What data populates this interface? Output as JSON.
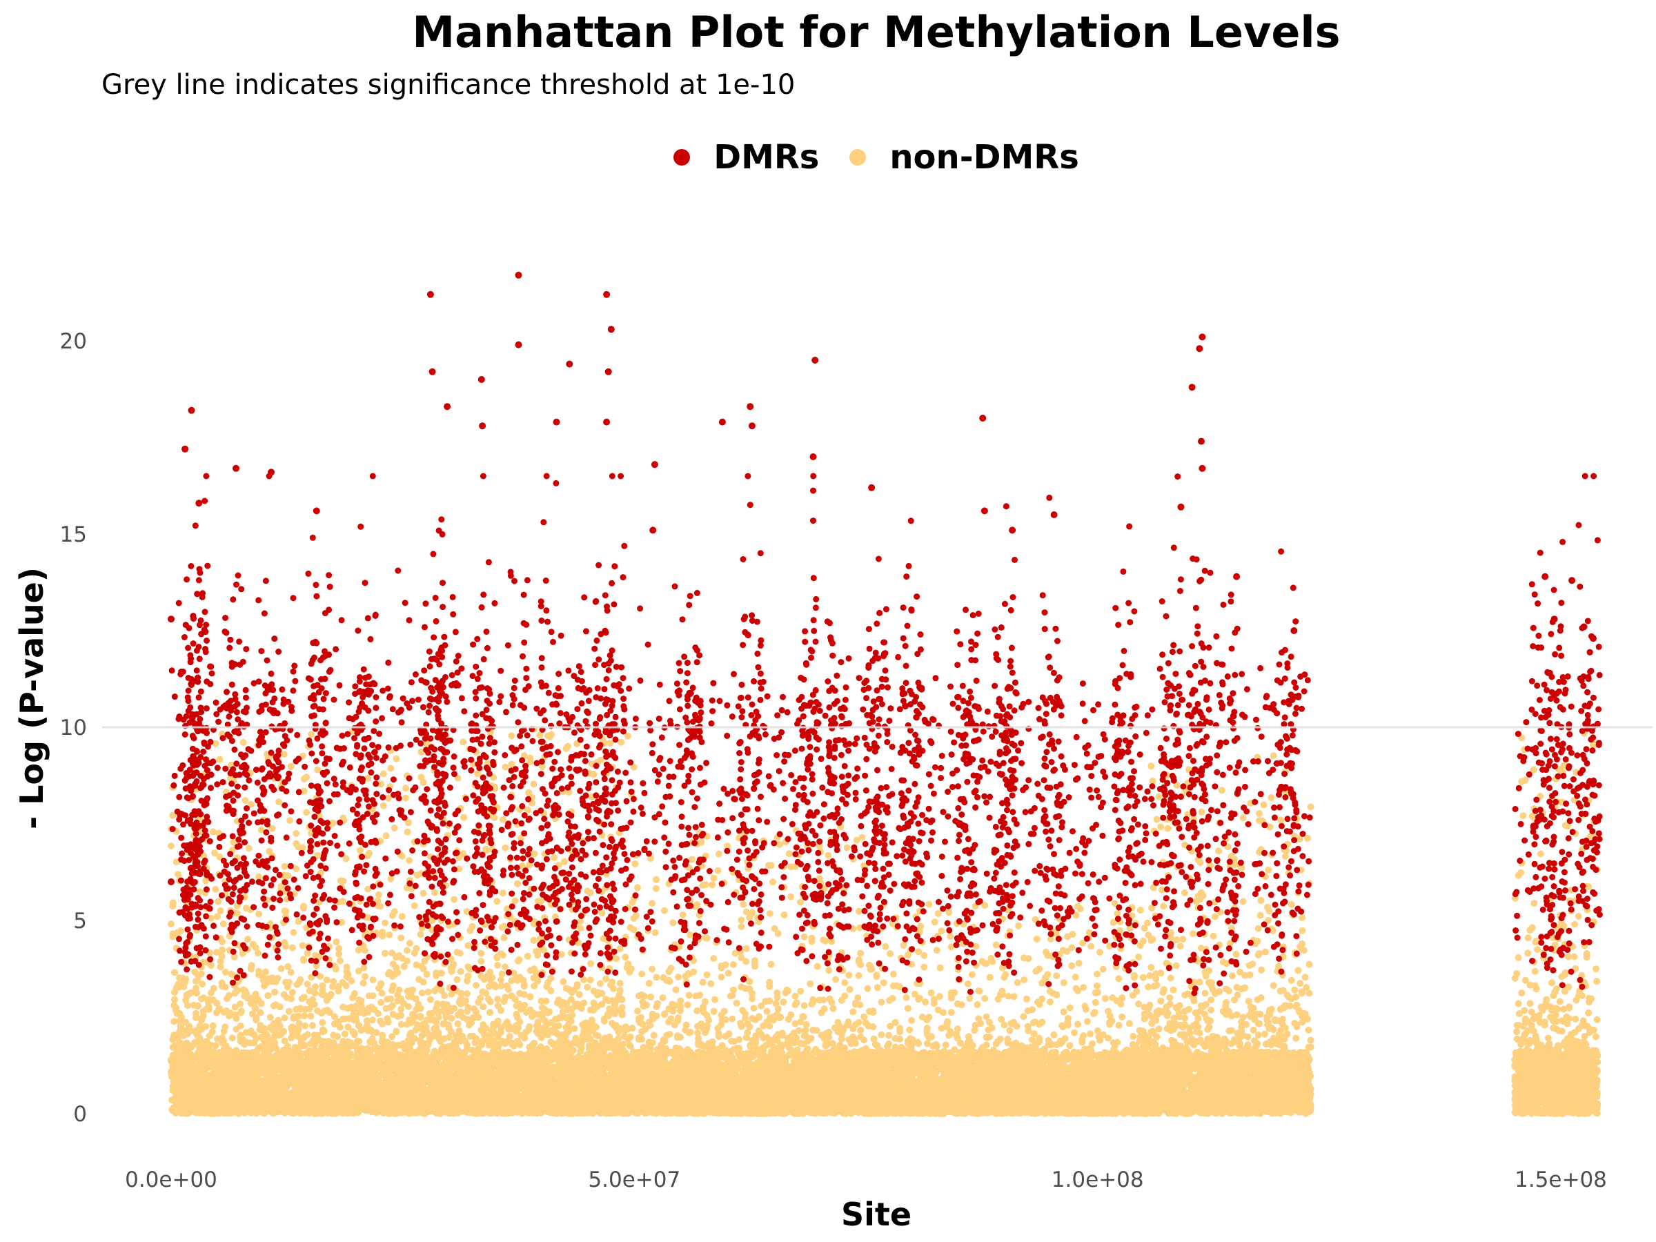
{
  "chart_data": {
    "type": "scatter",
    "title": "Manhattan Plot for Methylation Levels",
    "subtitle": "Grey line indicates significance threshold at 1e-10",
    "xlabel": "Site",
    "ylabel": "- Log (P-value)",
    "xlim": [
      -4000000,
      157000000
    ],
    "ylim": [
      -1,
      23
    ],
    "x_ticks": [
      0,
      50000000,
      100000000,
      150000000
    ],
    "x_tick_labels": [
      "0.0e+00",
      "5.0e+07",
      "1.0e+08",
      "1.5e+08"
    ],
    "y_ticks": [
      0,
      5,
      10,
      15,
      20
    ],
    "y_tick_labels": [
      "0",
      "5",
      "10",
      "15",
      "20"
    ],
    "threshold": 10,
    "threshold_color": "#e0e0e0",
    "grid": false,
    "legend_position": "top",
    "series": [
      {
        "name": "DMRs",
        "color": "#cc0000",
        "sample_points": [
          [
            0,
            12.8
          ],
          [
            0,
            6.0
          ],
          [
            1500000,
            17.2
          ],
          [
            2200000,
            18.2
          ],
          [
            3000000,
            15.8
          ],
          [
            7000000,
            16.7
          ],
          [
            10800000,
            16.6
          ],
          [
            15700000,
            15.6
          ],
          [
            28000000,
            21.2
          ],
          [
            28200000,
            19.2
          ],
          [
            29800000,
            18.3
          ],
          [
            33500000,
            19.0
          ],
          [
            33600000,
            17.8
          ],
          [
            37500000,
            21.7
          ],
          [
            37500000,
            19.9
          ],
          [
            41600000,
            17.9
          ],
          [
            43000000,
            19.4
          ],
          [
            47000000,
            21.2
          ],
          [
            47500000,
            20.3
          ],
          [
            47200000,
            19.2
          ],
          [
            47000000,
            17.9
          ],
          [
            52000000,
            15.1
          ],
          [
            52200000,
            16.8
          ],
          [
            59500000,
            17.9
          ],
          [
            62500000,
            18.3
          ],
          [
            62700000,
            17.8
          ],
          [
            69500000,
            19.5
          ],
          [
            69300000,
            17.0
          ],
          [
            75600000,
            16.2
          ],
          [
            87600000,
            18.0
          ],
          [
            87800000,
            15.6
          ],
          [
            90800000,
            15.1
          ],
          [
            95300000,
            15.5
          ],
          [
            109000000,
            15.7
          ],
          [
            110200000,
            18.8
          ],
          [
            111300000,
            20.1
          ],
          [
            111000000,
            19.8
          ],
          [
            111200000,
            17.4
          ],
          [
            111300000,
            16.7
          ],
          [
            115000000,
            13.9
          ],
          [
            121200000,
            12.5
          ],
          [
            148300000,
            13.9
          ],
          [
            149300000,
            12.8
          ],
          [
            151200000,
            13.8
          ],
          [
            152500000,
            12.6
          ],
          [
            153500000,
            12.3
          ]
        ]
      },
      {
        "name": "non-DMRs",
        "color": "#fdd17f",
        "sample_points": [
          [
            0,
            5.4
          ],
          [
            5000000,
            9.9
          ],
          [
            20000000,
            9.8
          ],
          [
            40000000,
            9.9
          ],
          [
            60000000,
            9.8
          ],
          [
            80000000,
            9.9
          ],
          [
            100000000,
            9.5
          ],
          [
            120000000,
            9.8
          ],
          [
            121000000,
            9.8
          ],
          [
            146000000,
            9.9
          ],
          [
            150000000,
            9.6
          ]
        ]
      }
    ],
    "x_extent_segments": [
      [
        0,
        123000000
      ],
      [
        145000000,
        154000000
      ]
    ]
  }
}
